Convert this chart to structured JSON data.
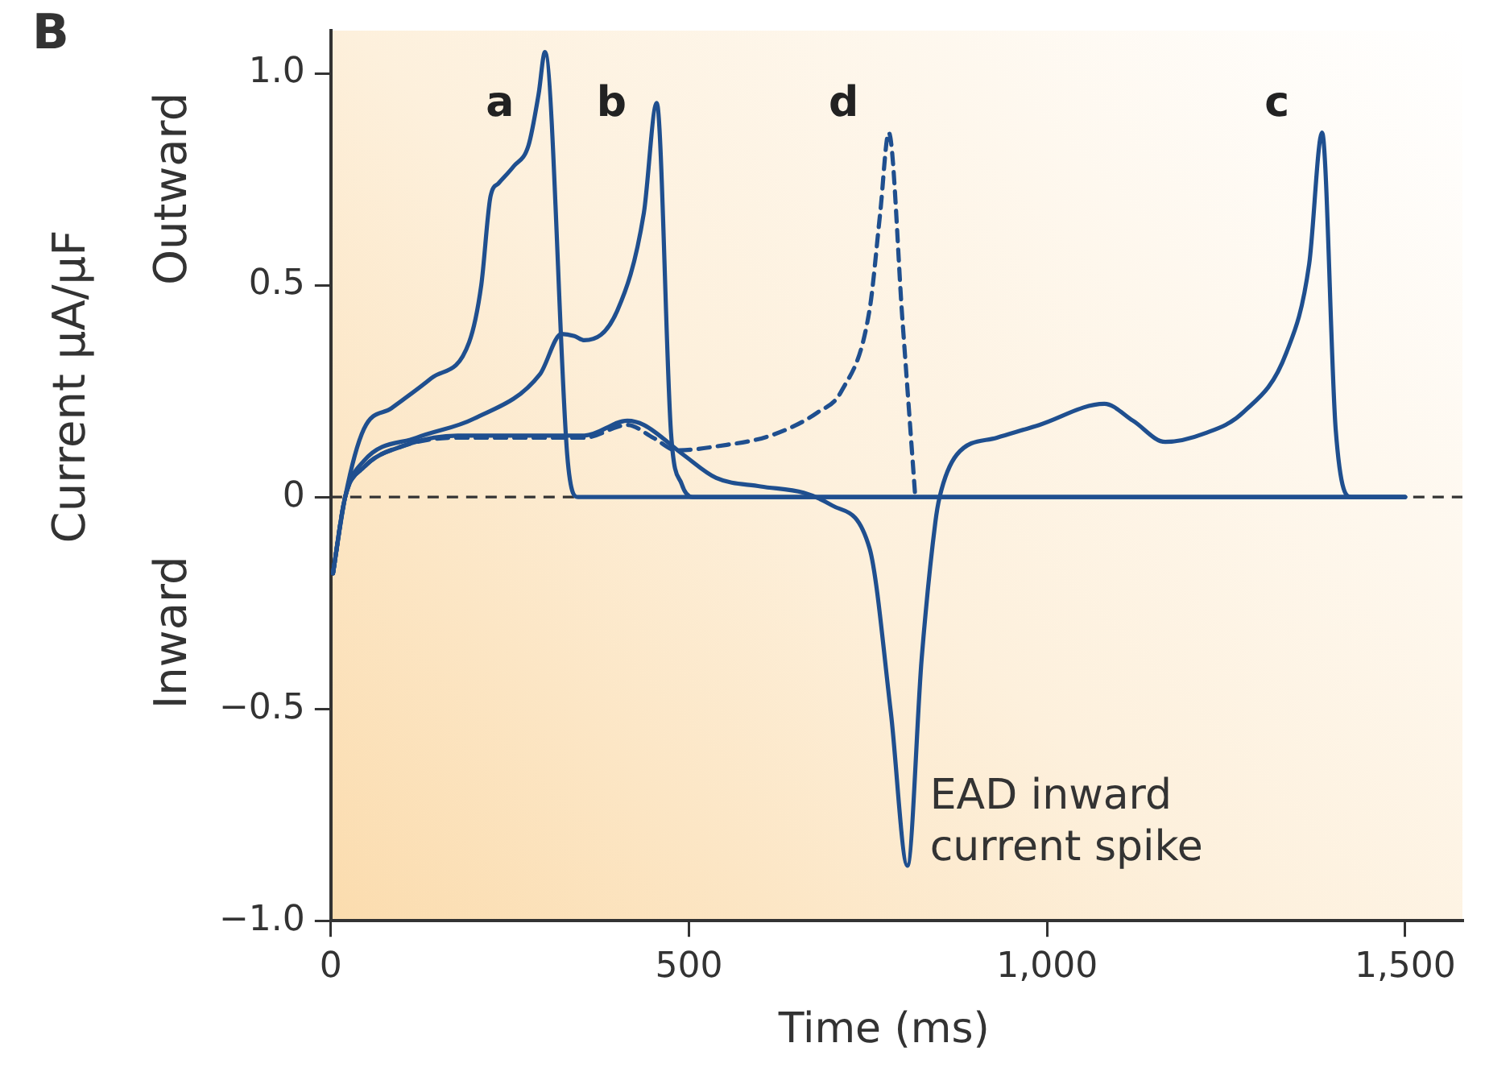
{
  "chart_data": {
    "type": "line",
    "xlabel": "Time (ms)",
    "ylabel": "Current μA/μF",
    "annotations": [
      "B",
      "Outward",
      "Inward",
      {
        "text": "EAD inward current spike",
        "x": 805,
        "y": -0.87
      }
    ],
    "xlim": [
      0,
      1580
    ],
    "xticks": [
      0,
      500,
      {
        "value": 1000,
        "label": "1,000"
      },
      {
        "value": 1500,
        "label": "1,500"
      }
    ],
    "ylim": [
      -1.0,
      1.1
    ],
    "yticks": [
      {
        "value": -1.0,
        "label": "−1.0"
      },
      {
        "value": -0.5,
        "label": "−0.5"
      },
      0,
      0.5,
      {
        "value": 1.0,
        "label": "1.0"
      }
    ],
    "grid": false,
    "legend": false,
    "marker": "none",
    "ref_lines": [
      {
        "axis": "y",
        "value": 0,
        "color": "#333333",
        "line_style": "dashed"
      }
    ],
    "series": [
      {
        "name": "a",
        "color": "#1f4f8f",
        "line_style": "solid",
        "x": [
          3,
          20,
          46,
          85,
          140,
          193,
          210,
          223,
          234,
          255,
          276,
          290,
          299,
          330,
          338,
          345,
          1500
        ],
        "values": [
          -0.18,
          0.0,
          0.16,
          0.21,
          0.28,
          0.365,
          0.5,
          0.71,
          0.74,
          0.78,
          0.83,
          0.95,
          1.05,
          0.1,
          0.01,
          0.0,
          0.0
        ]
      },
      {
        "name": "b",
        "color": "#1f4f8f",
        "line_style": "solid",
        "x": [
          3,
          20,
          46,
          120,
          200,
          292,
          322,
          340,
          354,
          400,
          437,
          455,
          475,
          490,
          505,
          1500
        ],
        "values": [
          -0.18,
          0.0,
          0.085,
          0.14,
          0.185,
          0.29,
          0.385,
          0.38,
          0.37,
          0.44,
          0.67,
          0.93,
          0.15,
          0.03,
          0.0,
          0.0
        ]
      },
      {
        "name": "d",
        "color": "#1f4f8f",
        "line_style": "dashed",
        "x": [
          3,
          20,
          46,
          100,
          177,
          354,
          414,
          450,
          483,
          540,
          614,
          680,
          713,
          752,
          767,
          779,
          798,
          816
        ],
        "values": [
          -0.18,
          0.0,
          0.07,
          0.12,
          0.14,
          0.14,
          0.17,
          0.14,
          0.11,
          0.12,
          0.145,
          0.2,
          0.25,
          0.44,
          0.67,
          0.86,
          0.42,
          0.0
        ]
      },
      {
        "name": "c",
        "color": "#1f4f8f",
        "line_style": "solid",
        "x": [
          3,
          20,
          46,
          100,
          177,
          354,
          414,
          437,
          492,
          538,
          600,
          660,
          700,
          752,
          782,
          805,
          825,
          844,
          850,
          874,
          930,
          989,
          1080,
          1120,
          1165,
          1220,
          1274,
          1334,
          1366,
          1384,
          1403,
          1425,
          1500
        ],
        "values": [
          -0.18,
          0.0,
          0.07,
          0.12,
          0.145,
          0.145,
          0.18,
          0.17,
          0.1,
          0.045,
          0.025,
          0.01,
          -0.02,
          -0.12,
          -0.51,
          -0.87,
          -0.38,
          -0.06,
          0.0,
          0.1,
          0.14,
          0.17,
          0.22,
          0.18,
          0.13,
          0.15,
          0.2,
          0.34,
          0.55,
          0.86,
          0.16,
          0.0,
          0.0
        ]
      }
    ]
  }
}
